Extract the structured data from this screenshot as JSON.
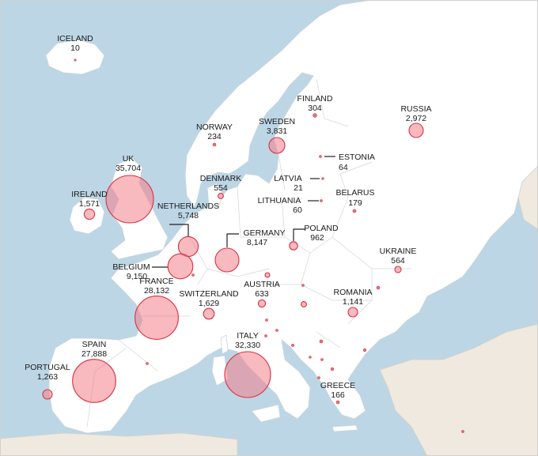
{
  "colors": {
    "sea": "#bcd6e6",
    "land": "#ffffff",
    "land_outside": "#efe9df",
    "bubble_fill": "#f27f8a",
    "bubble_stroke": "#d9303e"
  },
  "countries": {
    "iceland": {
      "name": "ICELAND",
      "value": "10"
    },
    "uk": {
      "name": "UK",
      "value": "35,704"
    },
    "ireland": {
      "name": "IRELAND",
      "value": "1,571"
    },
    "norway": {
      "name": "NORWAY",
      "value": "234"
    },
    "sweden": {
      "name": "SWEDEN",
      "value": "3,831"
    },
    "finland": {
      "name": "FINLAND",
      "value": "304"
    },
    "russia": {
      "name": "RUSSIA",
      "value": "2,972"
    },
    "estonia": {
      "name": "ESTONIA",
      "value": "64"
    },
    "latvia": {
      "name": "LATVIA",
      "value": "21"
    },
    "lithuania": {
      "name": "LITHUANIA",
      "value": "60"
    },
    "belarus": {
      "name": "BELARUS",
      "value": "179"
    },
    "denmark": {
      "name": "DENMARK",
      "value": "554"
    },
    "netherlands": {
      "name": "NETHERLANDS",
      "value": "5,748"
    },
    "germany": {
      "name": "GERMANY",
      "value": "8,147"
    },
    "poland": {
      "name": "POLAND",
      "value": "962"
    },
    "belgium": {
      "name": "BELGIUM",
      "value": "9,150"
    },
    "france": {
      "name": "FRANCE",
      "value": "28,132"
    },
    "switzerland": {
      "name": "SWITZERLAND",
      "value": "1,629"
    },
    "austria": {
      "name": "AUSTRIA",
      "value": "633"
    },
    "ukraine": {
      "name": "UKRAINE",
      "value": "564"
    },
    "romania": {
      "name": "ROMANIA",
      "value": "1,141"
    },
    "italy": {
      "name": "ITALY",
      "value": "32,330"
    },
    "spain": {
      "name": "SPAIN",
      "value": "27,888"
    },
    "portugal": {
      "name": "PORTUGAL",
      "value": "1,263"
    },
    "greece": {
      "name": "GREECE",
      "value": "166"
    }
  }
}
